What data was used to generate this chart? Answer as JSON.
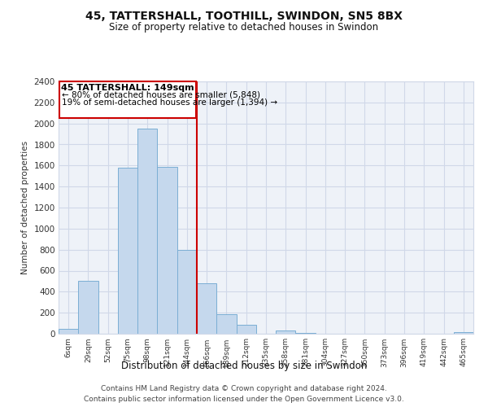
{
  "title": "45, TATTERSHALL, TOOTHILL, SWINDON, SN5 8BX",
  "subtitle": "Size of property relative to detached houses in Swindon",
  "xlabel": "Distribution of detached houses by size in Swindon",
  "ylabel": "Number of detached properties",
  "bar_labels": [
    "6sqm",
    "29sqm",
    "52sqm",
    "75sqm",
    "98sqm",
    "121sqm",
    "144sqm",
    "166sqm",
    "189sqm",
    "212sqm",
    "235sqm",
    "258sqm",
    "281sqm",
    "304sqm",
    "327sqm",
    "350sqm",
    "373sqm",
    "396sqm",
    "419sqm",
    "442sqm",
    "465sqm"
  ],
  "bar_values": [
    50,
    500,
    0,
    1580,
    1950,
    1590,
    800,
    480,
    185,
    85,
    0,
    30,
    5,
    0,
    0,
    0,
    0,
    0,
    0,
    0,
    12
  ],
  "bar_color": "#c5d8ed",
  "bar_edge_color": "#7baed4",
  "vline_color": "#cc0000",
  "annotation_title": "45 TATTERSHALL: 149sqm",
  "annotation_line1": "← 80% of detached houses are smaller (5,848)",
  "annotation_line2": "19% of semi-detached houses are larger (1,394) →",
  "annotation_box_color": "#ffffff",
  "annotation_box_edge": "#cc0000",
  "ylim": [
    0,
    2400
  ],
  "yticks": [
    0,
    200,
    400,
    600,
    800,
    1000,
    1200,
    1400,
    1600,
    1800,
    2000,
    2200,
    2400
  ],
  "footer_line1": "Contains HM Land Registry data © Crown copyright and database right 2024.",
  "footer_line2": "Contains public sector information licensed under the Open Government Licence v3.0.",
  "background_color": "#ffffff",
  "grid_color": "#d0d8e8",
  "plot_bg_color": "#eef2f8"
}
